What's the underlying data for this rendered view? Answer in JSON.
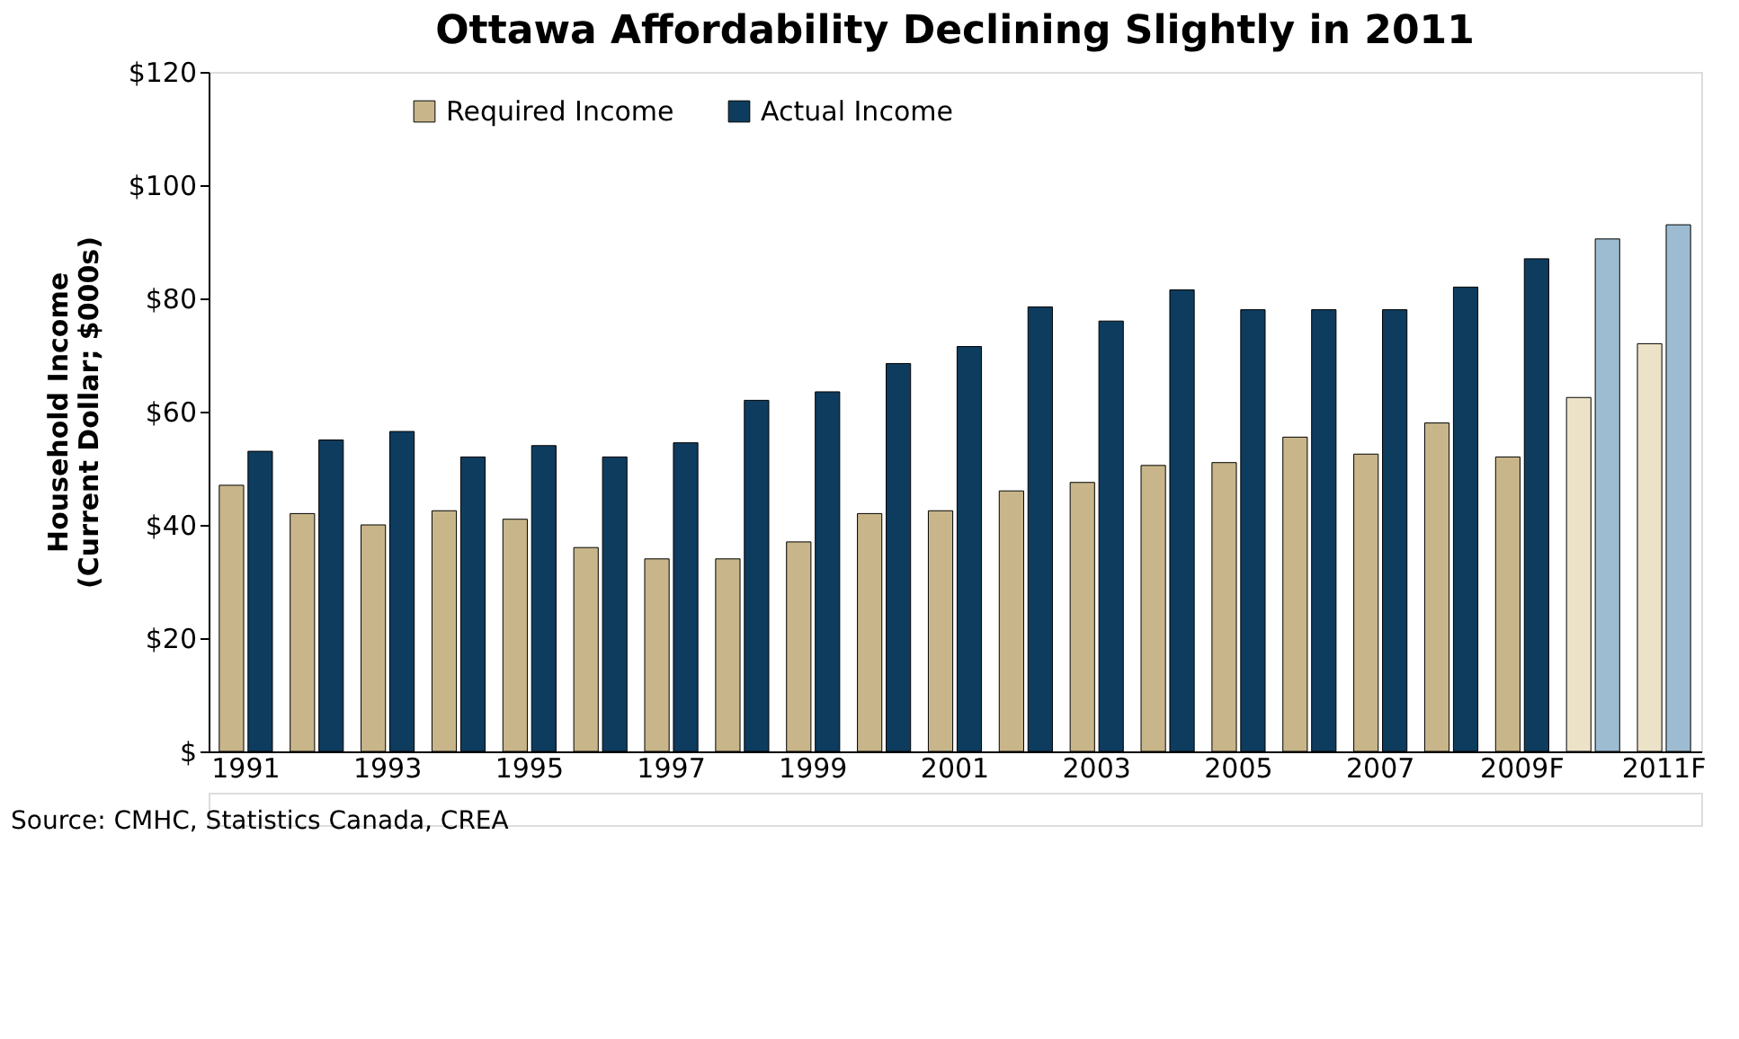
{
  "chart_data": {
    "type": "bar",
    "title": "Ottawa Affordability Declining Slightly in 2011",
    "ylabel": "Household Income\n(Current Dollar; $000s)",
    "categories": [
      "1991",
      null,
      "1993",
      null,
      "1995",
      null,
      "1997",
      null,
      "1999",
      null,
      "2001",
      null,
      "2003",
      null,
      "2005",
      null,
      "2007",
      null,
      "2009F",
      null,
      "2011F"
    ],
    "series": [
      {
        "name": "Required Income",
        "color": "#c8b68a",
        "colors": [
          "#c8b68a",
          "#c8b68a",
          "#c8b68a",
          "#c8b68a",
          "#c8b68a",
          "#c8b68a",
          "#c8b68a",
          "#c8b68a",
          "#c8b68a",
          "#c8b68a",
          "#c8b68a",
          "#c8b68a",
          "#c8b68a",
          "#c8b68a",
          "#c8b68a",
          "#c8b68a",
          "#c8b68a",
          "#c8b68a",
          "#c8b68a",
          "#ebe2c8",
          "#ebe2c8"
        ],
        "values": [
          47,
          42,
          40,
          42.5,
          41,
          36,
          34,
          34,
          37,
          42,
          42.5,
          46,
          47.5,
          50.5,
          51,
          55.5,
          52.5,
          58,
          52,
          62.5,
          72
        ]
      },
      {
        "name": "Actual Income",
        "color": "#0d3c5e",
        "colors": [
          "#0d3c5e",
          "#0d3c5e",
          "#0d3c5e",
          "#0d3c5e",
          "#0d3c5e",
          "#0d3c5e",
          "#0d3c5e",
          "#0d3c5e",
          "#0d3c5e",
          "#0d3c5e",
          "#0d3c5e",
          "#0d3c5e",
          "#0d3c5e",
          "#0d3c5e",
          "#0d3c5e",
          "#0d3c5e",
          "#0d3c5e",
          "#0d3c5e",
          "#0d3c5e",
          "#9dbcd2",
          "#9dbcd2"
        ],
        "values": [
          53,
          55,
          56.5,
          52,
          54,
          52,
          54.5,
          62,
          63.5,
          68.5,
          71.5,
          78.5,
          76,
          81.5,
          78,
          78,
          78,
          82,
          87,
          90.5,
          93
        ]
      }
    ],
    "ylim": [
      0,
      120
    ],
    "yticks": [
      {
        "value": 0,
        "label": "$"
      },
      {
        "value": 20,
        "label": "$20"
      },
      {
        "value": 40,
        "label": "$40"
      },
      {
        "value": 60,
        "label": "$60"
      },
      {
        "value": 80,
        "label": "$80"
      },
      {
        "value": 100,
        "label": "$100"
      },
      {
        "value": 120,
        "label": "$120"
      }
    ],
    "grid": false,
    "legend": "top left",
    "annotations": [
      "Source: CMHC, Statistics Canada, CREA"
    ]
  }
}
